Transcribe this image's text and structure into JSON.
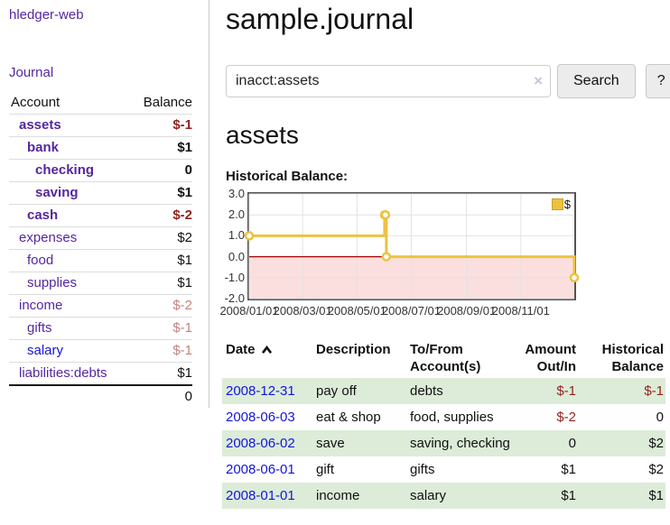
{
  "colors": {
    "link_purple": "#56279e",
    "link_blue": "#1414dd",
    "negative_red": "#93231c",
    "negative_muted": "#c28380",
    "row_green": "#dcecd9",
    "chart_line": "#edc240",
    "chart_negative_bg": "#fbdfdf",
    "chart_zero_line": "#a40000",
    "button_bg": "#ececec"
  },
  "app": {
    "brand": "hledger-web",
    "nav_journal": "Journal"
  },
  "sidebar": {
    "accounts_table": {
      "col_account": "Account",
      "col_balance": "Balance",
      "rows": [
        {
          "name": "assets",
          "balance": "$-1",
          "depth": 1,
          "bold": true,
          "neg": "strong"
        },
        {
          "name": "bank",
          "balance": "$1",
          "depth": 2,
          "bold": true,
          "neg": "none"
        },
        {
          "name": "checking",
          "balance": "0",
          "depth": 3,
          "bold": true,
          "neg": "none"
        },
        {
          "name": "saving",
          "balance": "$1",
          "depth": 3,
          "bold": true,
          "neg": "none"
        },
        {
          "name": "cash",
          "balance": "$-2",
          "depth": 2,
          "bold": true,
          "neg": "strong"
        },
        {
          "name": "expenses",
          "balance": "$2",
          "depth": 1,
          "bold": false,
          "neg": "none"
        },
        {
          "name": "food",
          "balance": "$1",
          "depth": 2,
          "bold": false,
          "neg": "none"
        },
        {
          "name": "supplies",
          "balance": "$1",
          "depth": 2,
          "bold": false,
          "neg": "none"
        },
        {
          "name": "income",
          "balance": "$-2",
          "depth": 1,
          "bold": false,
          "neg": "muted"
        },
        {
          "name": "gifts",
          "balance": "$-1",
          "depth": 2,
          "bold": false,
          "neg": "muted"
        },
        {
          "name": "salary",
          "balance": "$-1",
          "depth": 2,
          "bold": false,
          "neg": "muted",
          "link_style": "blue"
        },
        {
          "name": "liabilities:debts",
          "balance": "$1",
          "depth": 1,
          "bold": false,
          "neg": "none"
        }
      ],
      "total": "0"
    }
  },
  "header": {
    "title": "sample.journal"
  },
  "search": {
    "value": "inacct:assets",
    "clear_icon": "×",
    "search_label": "Search",
    "help_label": "?"
  },
  "account_page": {
    "heading": "assets",
    "chart_label": "Historical Balance:"
  },
  "chart_data": {
    "type": "line",
    "title": "Historical Balance",
    "step": true,
    "series": [
      {
        "name": "$",
        "points": [
          [
            "2008-01-01",
            1
          ],
          [
            "2008-06-01",
            2
          ],
          [
            "2008-06-02",
            2
          ],
          [
            "2008-06-03",
            0
          ],
          [
            "2008-12-31",
            -1
          ]
        ]
      }
    ],
    "x_range": [
      "2008-01-01",
      "2008-12-31"
    ],
    "x_ticks": [
      "2008/01/01",
      "2008/03/01",
      "2008/05/01",
      "2008/07/01",
      "2008/09/01",
      "2008/11/01"
    ],
    "y_ticks": [
      3.0,
      2.0,
      1.0,
      0.0,
      -1.0,
      -2.0
    ],
    "ylim": [
      -2,
      3
    ],
    "grid": true,
    "legend_position": "top-right",
    "negative_region_shaded": true
  },
  "register_table": {
    "columns": [
      "Date",
      "Description",
      "To/From Account(s)",
      "Amount Out/In",
      "Historical Balance"
    ],
    "sort_icon": "chevron-up",
    "rows": [
      {
        "date": "2008-12-31",
        "description": "pay off",
        "accounts": "debts",
        "amount": "$-1",
        "amount_negative": true,
        "balance": "$-1",
        "balance_negative": true
      },
      {
        "date": "2008-06-03",
        "description": "eat & shop",
        "accounts": "food, supplies",
        "amount": "$-2",
        "amount_negative": true,
        "balance": "0",
        "balance_negative": false
      },
      {
        "date": "2008-06-02",
        "description": "save",
        "accounts": "saving, checking",
        "amount": "0",
        "amount_negative": false,
        "balance": "$2",
        "balance_negative": false
      },
      {
        "date": "2008-06-01",
        "description": "gift",
        "accounts": "gifts",
        "amount": "$1",
        "amount_negative": false,
        "balance": "$2",
        "balance_negative": false
      },
      {
        "date": "2008-01-01",
        "description": "income",
        "accounts": "salary",
        "amount": "$1",
        "amount_negative": false,
        "balance": "$1",
        "balance_negative": false
      }
    ]
  }
}
